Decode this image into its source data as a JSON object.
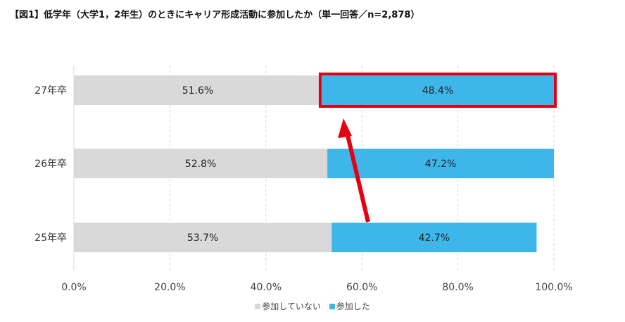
{
  "title": "【図1】低学年（大学1，2年生）のときにキャリア形成活動に参加したか（単一回答／n=2,878）",
  "colors": {
    "not_participated": "#d9d9d9",
    "participated": "#3fb6ea",
    "highlight": "#e60012",
    "arrow": "#e60012",
    "grid": "#d9d9d9"
  },
  "chart_data": {
    "type": "bar",
    "orientation": "horizontal",
    "stacked": true,
    "categories": [
      "27年卒",
      "26年卒",
      "25年卒"
    ],
    "series": [
      {
        "name": "参加していない",
        "values": [
          51.6,
          52.8,
          53.7
        ],
        "labels": [
          "51.6%",
          "52.8%",
          "53.7%"
        ]
      },
      {
        "name": "参加した",
        "values": [
          48.4,
          47.2,
          42.7
        ],
        "labels": [
          "48.4%",
          "47.2%",
          "42.7%"
        ]
      }
    ],
    "xlim": [
      0,
      100
    ],
    "xticks": [
      "0.0%",
      "20.0%",
      "40.0%",
      "60.0%",
      "80.0%",
      "100.0%"
    ],
    "grid": true,
    "legend": "bottom",
    "annotations": [
      {
        "type": "highlight-box",
        "target": "27年卒 参加した"
      },
      {
        "type": "arrow",
        "from": "25年卒 参加した",
        "to": "27年卒 参加した"
      }
    ]
  }
}
